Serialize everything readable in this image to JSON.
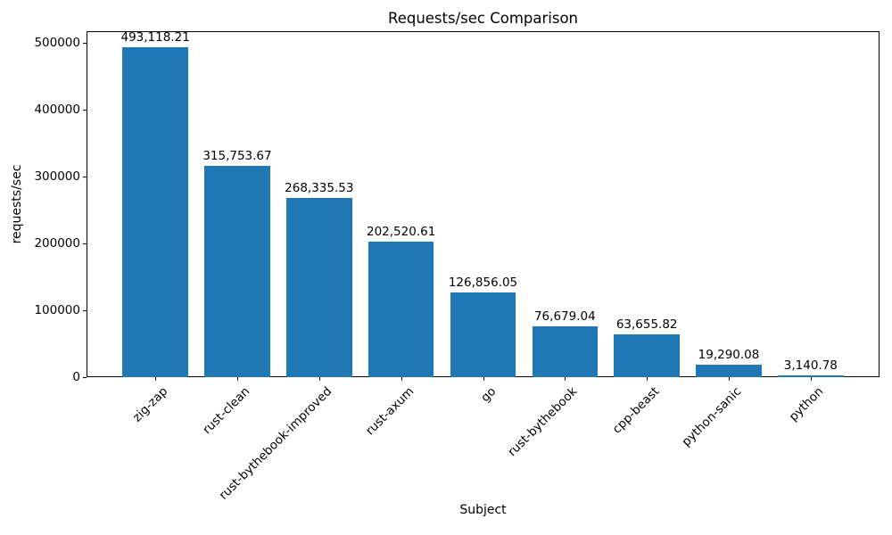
{
  "figure": {
    "background": "#ffffff",
    "text_color": "#000000"
  },
  "chart_data": {
    "type": "bar",
    "title": "Requests/sec Comparison",
    "xlabel": "Subject",
    "ylabel": "requests/sec",
    "categories": [
      "zig-zap",
      "rust-clean",
      "rust-bythebook-improved",
      "rust-axum",
      "go",
      "rust-bythebook",
      "cpp-beast",
      "python-sanic",
      "python"
    ],
    "values": [
      493118.21,
      315753.67,
      268335.53,
      202520.61,
      126856.05,
      76679.04,
      63655.82,
      19290.08,
      3140.78
    ],
    "value_labels": [
      "493,118.21",
      "315,753.67",
      "268,335.53",
      "202,520.61",
      "126,856.05",
      "76,679.04",
      "63,655.82",
      "19,290.08",
      "3,140.78"
    ],
    "bar_color": "#1f77b4",
    "ylim": [
      0,
      517774
    ],
    "yticks": [
      0,
      100000,
      200000,
      300000,
      400000,
      500000
    ],
    "ytick_labels": [
      "0",
      "100000",
      "200000",
      "300000",
      "400000",
      "500000"
    ],
    "xtick_rotation": 45,
    "grid": false,
    "legend": null
  }
}
